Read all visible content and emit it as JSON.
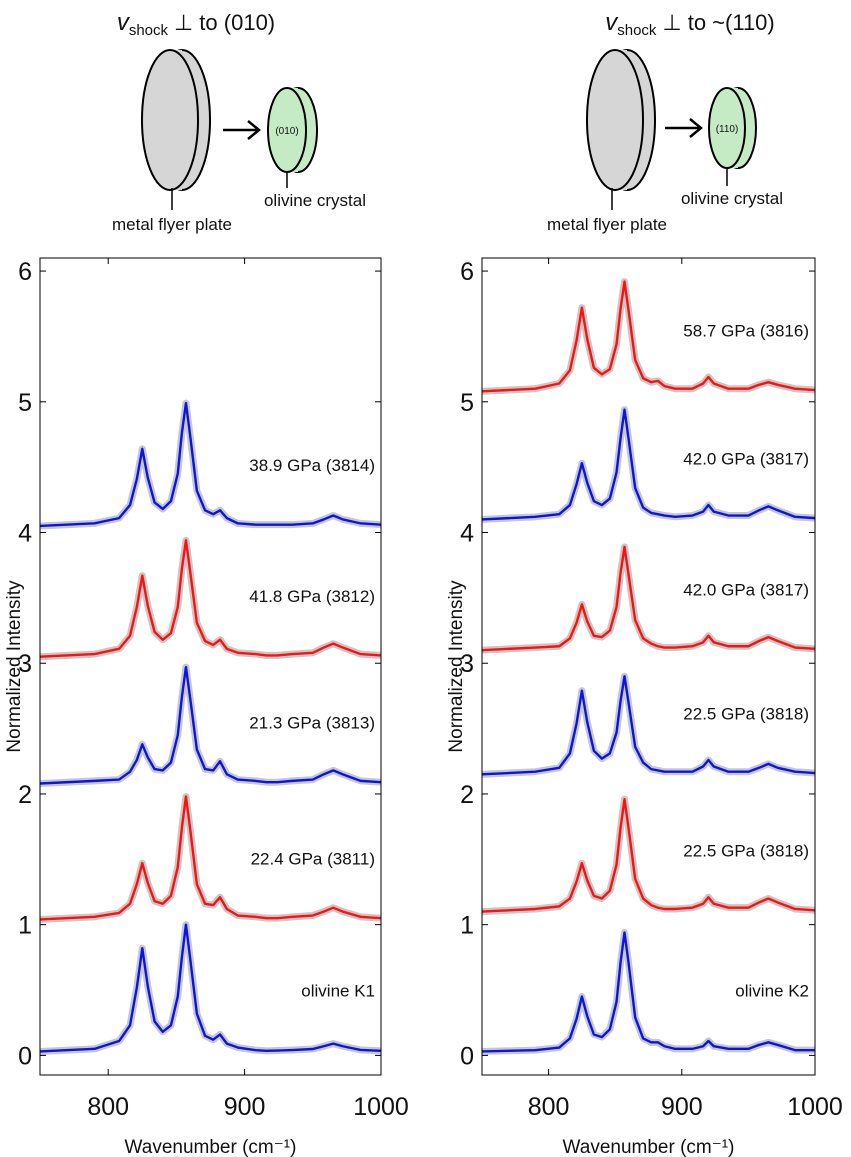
{
  "diagrams": [
    {
      "velocity_symbol": "v",
      "velocity_subscript": "shock",
      "orientation": "⊥ to (010)",
      "face_label": "(010)",
      "crystal_label": "olivine crystal",
      "plate_label": "metal flyer plate"
    },
    {
      "velocity_symbol": "v",
      "velocity_subscript": "shock",
      "orientation": "⊥ to ~(110)",
      "face_label": "(110)",
      "crystal_label": "olivine crystal",
      "plate_label": "metal flyer plate"
    }
  ],
  "chart_data": [
    {
      "type": "line",
      "xlabel": "Wavenumber (cm⁻¹)",
      "ylabel": "Normalized Intensity",
      "x": [
        750,
        790,
        808,
        816,
        821,
        825,
        829,
        834,
        840,
        846,
        851,
        854,
        857,
        860,
        865,
        871,
        877,
        882,
        887,
        895,
        908,
        916,
        920,
        924,
        935,
        950,
        958,
        965,
        972,
        985,
        1000
      ],
      "xlim": [
        750,
        1000
      ],
      "ylim": [
        -0.15,
        6.1
      ],
      "xticks": [
        800,
        900,
        1000
      ],
      "yticks": [
        0,
        1,
        2,
        3,
        4,
        5,
        6
      ],
      "series": [
        {
          "name": "olivine K1",
          "color": "#0a14e6",
          "values": [
            0.03,
            0.05,
            0.11,
            0.23,
            0.52,
            0.82,
            0.53,
            0.26,
            0.18,
            0.23,
            0.45,
            0.75,
            1.0,
            0.75,
            0.32,
            0.15,
            0.12,
            0.16,
            0.09,
            0.06,
            0.04,
            0.035,
            0.036,
            0.037,
            0.041,
            0.049,
            0.07,
            0.09,
            0.07,
            0.042,
            0.035
          ]
        },
        {
          "name": "22.4 GPa (3811)",
          "color": "#ff1010",
          "values": [
            1.04,
            1.06,
            1.09,
            1.16,
            1.31,
            1.47,
            1.32,
            1.18,
            1.16,
            1.22,
            1.44,
            1.74,
            1.98,
            1.74,
            1.31,
            1.16,
            1.15,
            1.21,
            1.12,
            1.07,
            1.06,
            1.05,
            1.05,
            1.05,
            1.06,
            1.07,
            1.1,
            1.13,
            1.1,
            1.06,
            1.05
          ]
        },
        {
          "name": "21.3 GPa (3813)",
          "color": "#0a14e6",
          "values": [
            2.08,
            2.1,
            2.11,
            2.17,
            2.26,
            2.38,
            2.28,
            2.19,
            2.18,
            2.24,
            2.45,
            2.74,
            2.97,
            2.74,
            2.34,
            2.19,
            2.18,
            2.25,
            2.15,
            2.11,
            2.1,
            2.09,
            2.09,
            2.09,
            2.1,
            2.11,
            2.15,
            2.18,
            2.15,
            2.1,
            2.09
          ]
        },
        {
          "name": "41.8 GPa (3812)",
          "color": "#ff1010",
          "values": [
            3.05,
            3.07,
            3.11,
            3.21,
            3.43,
            3.67,
            3.44,
            3.24,
            3.18,
            3.23,
            3.43,
            3.72,
            3.94,
            3.71,
            3.31,
            3.17,
            3.14,
            3.18,
            3.11,
            3.08,
            3.07,
            3.06,
            3.06,
            3.06,
            3.07,
            3.08,
            3.12,
            3.15,
            3.12,
            3.07,
            3.06
          ]
        },
        {
          "name": "38.9 GPa (3814)",
          "color": "#0a14e6",
          "values": [
            4.05,
            4.07,
            4.11,
            4.21,
            4.41,
            4.64,
            4.42,
            4.23,
            4.18,
            4.24,
            4.45,
            4.76,
            4.99,
            4.75,
            4.32,
            4.17,
            4.14,
            4.17,
            4.11,
            4.07,
            4.06,
            4.06,
            4.06,
            4.06,
            4.06,
            4.07,
            4.1,
            4.13,
            4.1,
            4.07,
            4.06
          ]
        }
      ]
    },
    {
      "type": "line",
      "xlabel": "Wavenumber (cm⁻¹)",
      "ylabel": "Normalized Intensity",
      "x": [
        750,
        790,
        808,
        816,
        821,
        825,
        829,
        834,
        840,
        846,
        851,
        854,
        857,
        860,
        865,
        871,
        877,
        882,
        887,
        895,
        908,
        916,
        920,
        924,
        935,
        950,
        958,
        965,
        972,
        985,
        1000
      ],
      "xlim": [
        750,
        1000
      ],
      "ylim": [
        -0.15,
        6.1
      ],
      "xticks": [
        800,
        900,
        1000
      ],
      "yticks": [
        0,
        1,
        2,
        3,
        4,
        5,
        6
      ],
      "series": [
        {
          "name": "olivine K2",
          "color": "#0a14e6",
          "values": [
            0.03,
            0.04,
            0.06,
            0.13,
            0.28,
            0.45,
            0.3,
            0.16,
            0.14,
            0.2,
            0.41,
            0.71,
            0.94,
            0.71,
            0.29,
            0.13,
            0.1,
            0.1,
            0.07,
            0.05,
            0.05,
            0.07,
            0.11,
            0.07,
            0.05,
            0.05,
            0.08,
            0.1,
            0.08,
            0.04,
            0.04
          ]
        },
        {
          "name": "22.5 GPa (3818)",
          "color": "#ff1010",
          "values": [
            1.1,
            1.12,
            1.14,
            1.2,
            1.33,
            1.47,
            1.34,
            1.22,
            1.2,
            1.26,
            1.46,
            1.74,
            1.96,
            1.74,
            1.35,
            1.2,
            1.15,
            1.13,
            1.12,
            1.12,
            1.13,
            1.16,
            1.21,
            1.16,
            1.13,
            1.13,
            1.17,
            1.2,
            1.17,
            1.12,
            1.11
          ]
        },
        {
          "name": "22.5 GPa (3818)",
          "color": "#0a14e6",
          "values": [
            2.15,
            2.17,
            2.2,
            2.31,
            2.54,
            2.79,
            2.55,
            2.33,
            2.27,
            2.31,
            2.47,
            2.71,
            2.9,
            2.7,
            2.36,
            2.24,
            2.19,
            2.18,
            2.17,
            2.17,
            2.17,
            2.21,
            2.26,
            2.21,
            2.17,
            2.17,
            2.2,
            2.23,
            2.2,
            2.17,
            2.16
          ]
        },
        {
          "name": "42.0 GPa (3817)",
          "color": "#ff1010",
          "values": [
            3.1,
            3.12,
            3.13,
            3.19,
            3.31,
            3.45,
            3.32,
            3.21,
            3.2,
            3.25,
            3.43,
            3.69,
            3.89,
            3.68,
            3.33,
            3.19,
            3.15,
            3.13,
            3.12,
            3.12,
            3.13,
            3.16,
            3.21,
            3.16,
            3.13,
            3.13,
            3.17,
            3.2,
            3.17,
            3.12,
            3.11
          ]
        },
        {
          "name": "42.0 GPa (3817)",
          "color": "#0a14e6",
          "values": [
            4.1,
            4.12,
            4.14,
            4.21,
            4.37,
            4.53,
            4.38,
            4.24,
            4.21,
            4.26,
            4.46,
            4.72,
            4.94,
            4.72,
            4.34,
            4.19,
            4.15,
            4.14,
            4.13,
            4.12,
            4.13,
            4.16,
            4.21,
            4.16,
            4.13,
            4.13,
            4.17,
            4.2,
            4.17,
            4.12,
            4.11
          ]
        },
        {
          "name": "58.7 GPa (3816)",
          "color": "#ff1010",
          "values": [
            5.08,
            5.1,
            5.14,
            5.24,
            5.47,
            5.72,
            5.48,
            5.26,
            5.21,
            5.25,
            5.44,
            5.71,
            5.92,
            5.7,
            5.32,
            5.18,
            5.15,
            5.16,
            5.12,
            5.1,
            5.1,
            5.14,
            5.19,
            5.14,
            5.1,
            5.1,
            5.13,
            5.15,
            5.13,
            5.1,
            5.09
          ]
        }
      ]
    }
  ]
}
